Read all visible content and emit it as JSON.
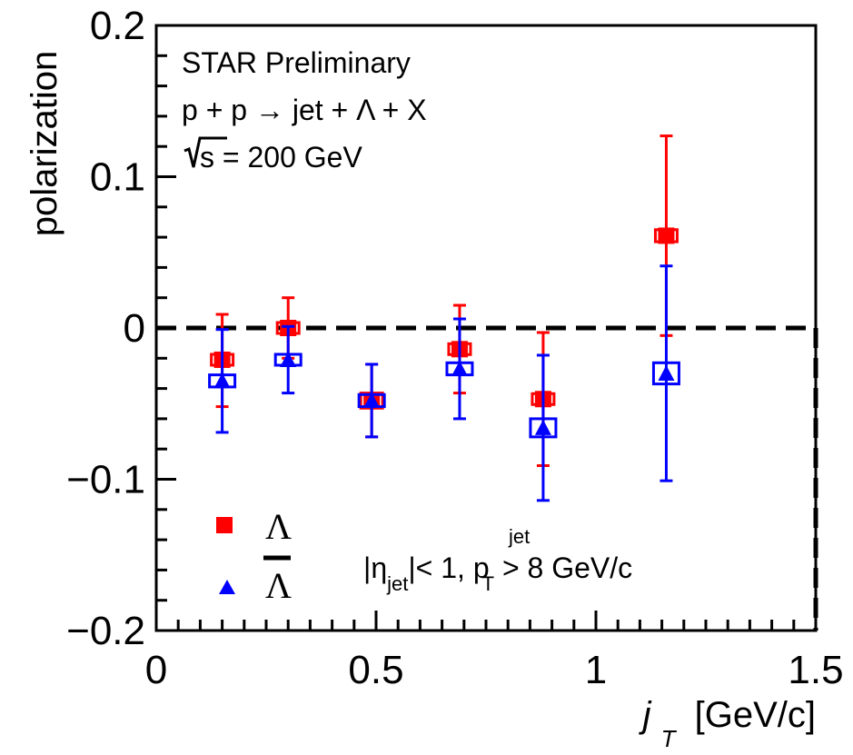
{
  "chart_data": {
    "type": "scatter",
    "title": "",
    "xlabel": "j",
    "xlabel_sub": "T",
    "xlabel_unit": "[GeV/c]",
    "ylabel": "polarization",
    "xlim": [
      0,
      1.5
    ],
    "ylim": [
      -0.2,
      0.2
    ],
    "x_ticks": [
      0,
      0.5,
      1,
      1.5
    ],
    "x_tick_labels": [
      "0",
      "0.5",
      "1",
      "1.5"
    ],
    "y_ticks": [
      -0.2,
      -0.1,
      0,
      0.1,
      0.2
    ],
    "y_tick_labels": [
      "−0.2",
      "−0.1",
      "0",
      "0.1",
      "0.2"
    ],
    "reference_line": 0,
    "annotations": {
      "experiment": "STAR Preliminary",
      "process": "p + p → jet + Λ + X",
      "energy_sqrt": "s",
      "energy_value": " = 200 GeV",
      "cuts_eta": "|η",
      "cuts_eta_sub": "jet",
      "cuts_mid": "|< 1, p",
      "cuts_pt_sub": "T",
      "cuts_pt_sup": "jet",
      "cuts_end": " > 8 GeV/c"
    },
    "series": [
      {
        "name": "Λ",
        "marker": "square",
        "color": "#ff0000",
        "x": [
          0.15,
          0.3,
          0.49,
          0.69,
          0.88,
          1.16
        ],
        "y": [
          -0.021,
          0.0,
          -0.048,
          -0.014,
          -0.047,
          0.061
        ],
        "err_low": [
          0.031,
          0.02,
          0.024,
          0.029,
          0.044,
          0.066
        ],
        "err_high": [
          0.03,
          0.02,
          0.024,
          0.029,
          0.044,
          0.066
        ],
        "sys": [
          0.003,
          0.003,
          0.005,
          0.003,
          0.002,
          0.004
        ]
      },
      {
        "name": "Λ̅",
        "marker": "triangle",
        "color": "#0000ff",
        "x": [
          0.15,
          0.3,
          0.49,
          0.69,
          0.88,
          1.16
        ],
        "y": [
          -0.035,
          -0.021,
          -0.048,
          -0.027,
          -0.066,
          -0.03
        ],
        "err_low": [
          0.034,
          0.022,
          0.024,
          0.033,
          0.048,
          0.071
        ],
        "err_high": [
          0.034,
          0.022,
          0.024,
          0.033,
          0.048,
          0.071
        ],
        "sys": [
          0.004,
          0.003,
          0.004,
          0.004,
          0.006,
          0.007
        ]
      }
    ],
    "legend": {
      "position": "bottom-left",
      "entries": [
        "Λ",
        "Λ"
      ]
    }
  }
}
